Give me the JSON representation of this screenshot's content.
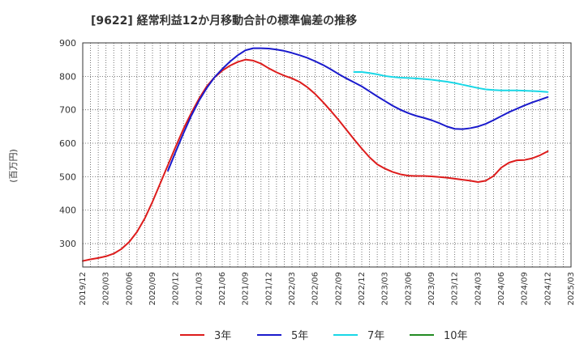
{
  "chart_data": {
    "type": "line",
    "title": "[9622]  経常利益12か月移動合計の標準偏差の推移",
    "ylabel": "(百万円)",
    "xlabel": "",
    "ylim": [
      230,
      900
    ],
    "yticks": [
      300,
      400,
      500,
      600,
      700,
      800,
      900
    ],
    "xlim": [
      "2019-12",
      "2025-03"
    ],
    "xticks": [
      "2019/12",
      "2020/03",
      "2020/06",
      "2020/09",
      "2020/12",
      "2021/03",
      "2021/06",
      "2021/09",
      "2021/12",
      "2022/03",
      "2022/06",
      "2022/09",
      "2022/12",
      "2023/03",
      "2023/06",
      "2023/09",
      "2023/12",
      "2024/03",
      "2024/06",
      "2024/09",
      "2024/12",
      "2025/03"
    ],
    "grid": true,
    "legend_position": "bottom",
    "series": [
      {
        "name": "3年",
        "color": "#dd1c1c",
        "points": [
          [
            "2019-12",
            248
          ],
          [
            "2020-01",
            253
          ],
          [
            "2020-02",
            257
          ],
          [
            "2020-03",
            262
          ],
          [
            "2020-04",
            270
          ],
          [
            "2020-05",
            284
          ],
          [
            "2020-06",
            305
          ],
          [
            "2020-07",
            335
          ],
          [
            "2020-08",
            375
          ],
          [
            "2020-09",
            425
          ],
          [
            "2020-10",
            480
          ],
          [
            "2020-11",
            535
          ],
          [
            "2020-12",
            590
          ],
          [
            "2021-01",
            643
          ],
          [
            "2021-02",
            690
          ],
          [
            "2021-03",
            733
          ],
          [
            "2021-04",
            770
          ],
          [
            "2021-05",
            797
          ],
          [
            "2021-06",
            817
          ],
          [
            "2021-07",
            832
          ],
          [
            "2021-08",
            843
          ],
          [
            "2021-09",
            850
          ],
          [
            "2021-10",
            847
          ],
          [
            "2021-11",
            838
          ],
          [
            "2021-12",
            824
          ],
          [
            "2022-01",
            812
          ],
          [
            "2022-02",
            802
          ],
          [
            "2022-03",
            794
          ],
          [
            "2022-04",
            783
          ],
          [
            "2022-05",
            767
          ],
          [
            "2022-06",
            747
          ],
          [
            "2022-07",
            723
          ],
          [
            "2022-08",
            697
          ],
          [
            "2022-09",
            670
          ],
          [
            "2022-10",
            641
          ],
          [
            "2022-11",
            612
          ],
          [
            "2022-12",
            584
          ],
          [
            "2023-01",
            558
          ],
          [
            "2023-02",
            537
          ],
          [
            "2023-03",
            524
          ],
          [
            "2023-04",
            514
          ],
          [
            "2023-05",
            507
          ],
          [
            "2023-06",
            503
          ],
          [
            "2023-07",
            502
          ],
          [
            "2023-08",
            502
          ],
          [
            "2023-09",
            501
          ],
          [
            "2023-10",
            499
          ],
          [
            "2023-11",
            497
          ],
          [
            "2023-12",
            494
          ],
          [
            "2024-01",
            491
          ],
          [
            "2024-02",
            488
          ],
          [
            "2024-03",
            484
          ],
          [
            "2024-04",
            488
          ],
          [
            "2024-05",
            502
          ],
          [
            "2024-06",
            527
          ],
          [
            "2024-07",
            542
          ],
          [
            "2024-08",
            549
          ],
          [
            "2024-09",
            550
          ],
          [
            "2024-10",
            555
          ],
          [
            "2024-11",
            564
          ],
          [
            "2024-12",
            576
          ]
        ]
      },
      {
        "name": "5年",
        "color": "#1a1acc",
        "points": [
          [
            "2020-11",
            518
          ],
          [
            "2020-12",
            575
          ],
          [
            "2021-01",
            630
          ],
          [
            "2021-02",
            682
          ],
          [
            "2021-03",
            727
          ],
          [
            "2021-04",
            765
          ],
          [
            "2021-05",
            797
          ],
          [
            "2021-06",
            822
          ],
          [
            "2021-07",
            844
          ],
          [
            "2021-08",
            863
          ],
          [
            "2021-09",
            878
          ],
          [
            "2021-10",
            884
          ],
          [
            "2021-11",
            884
          ],
          [
            "2021-12",
            883
          ],
          [
            "2022-01",
            880
          ],
          [
            "2022-02",
            876
          ],
          [
            "2022-03",
            870
          ],
          [
            "2022-04",
            863
          ],
          [
            "2022-05",
            855
          ],
          [
            "2022-06",
            845
          ],
          [
            "2022-07",
            834
          ],
          [
            "2022-08",
            821
          ],
          [
            "2022-09",
            807
          ],
          [
            "2022-10",
            794
          ],
          [
            "2022-11",
            782
          ],
          [
            "2022-12",
            770
          ],
          [
            "2023-01",
            755
          ],
          [
            "2023-02",
            740
          ],
          [
            "2023-03",
            726
          ],
          [
            "2023-04",
            712
          ],
          [
            "2023-05",
            700
          ],
          [
            "2023-06",
            690
          ],
          [
            "2023-07",
            682
          ],
          [
            "2023-08",
            676
          ],
          [
            "2023-09",
            669
          ],
          [
            "2023-10",
            660
          ],
          [
            "2023-11",
            650
          ],
          [
            "2023-12",
            643
          ],
          [
            "2024-01",
            642
          ],
          [
            "2024-02",
            645
          ],
          [
            "2024-03",
            650
          ],
          [
            "2024-04",
            658
          ],
          [
            "2024-05",
            669
          ],
          [
            "2024-06",
            681
          ],
          [
            "2024-07",
            693
          ],
          [
            "2024-08",
            703
          ],
          [
            "2024-09",
            713
          ],
          [
            "2024-10",
            722
          ],
          [
            "2024-11",
            730
          ],
          [
            "2024-12",
            738
          ]
        ]
      },
      {
        "name": "7年",
        "color": "#19d7e6",
        "points": [
          [
            "2022-11",
            813
          ],
          [
            "2022-12",
            813
          ],
          [
            "2023-01",
            810
          ],
          [
            "2023-02",
            806
          ],
          [
            "2023-03",
            801
          ],
          [
            "2023-04",
            798
          ],
          [
            "2023-05",
            796
          ],
          [
            "2023-06",
            795
          ],
          [
            "2023-07",
            794
          ],
          [
            "2023-08",
            792
          ],
          [
            "2023-09",
            790
          ],
          [
            "2023-10",
            787
          ],
          [
            "2023-11",
            784
          ],
          [
            "2023-12",
            780
          ],
          [
            "2024-01",
            775
          ],
          [
            "2024-02",
            770
          ],
          [
            "2024-03",
            765
          ],
          [
            "2024-04",
            761
          ],
          [
            "2024-05",
            759
          ],
          [
            "2024-06",
            758
          ],
          [
            "2024-07",
            758
          ],
          [
            "2024-08",
            758
          ],
          [
            "2024-09",
            757
          ],
          [
            "2024-10",
            756
          ],
          [
            "2024-11",
            755
          ],
          [
            "2024-12",
            753
          ]
        ]
      },
      {
        "name": "10年",
        "color": "#228b22",
        "points": []
      }
    ]
  }
}
